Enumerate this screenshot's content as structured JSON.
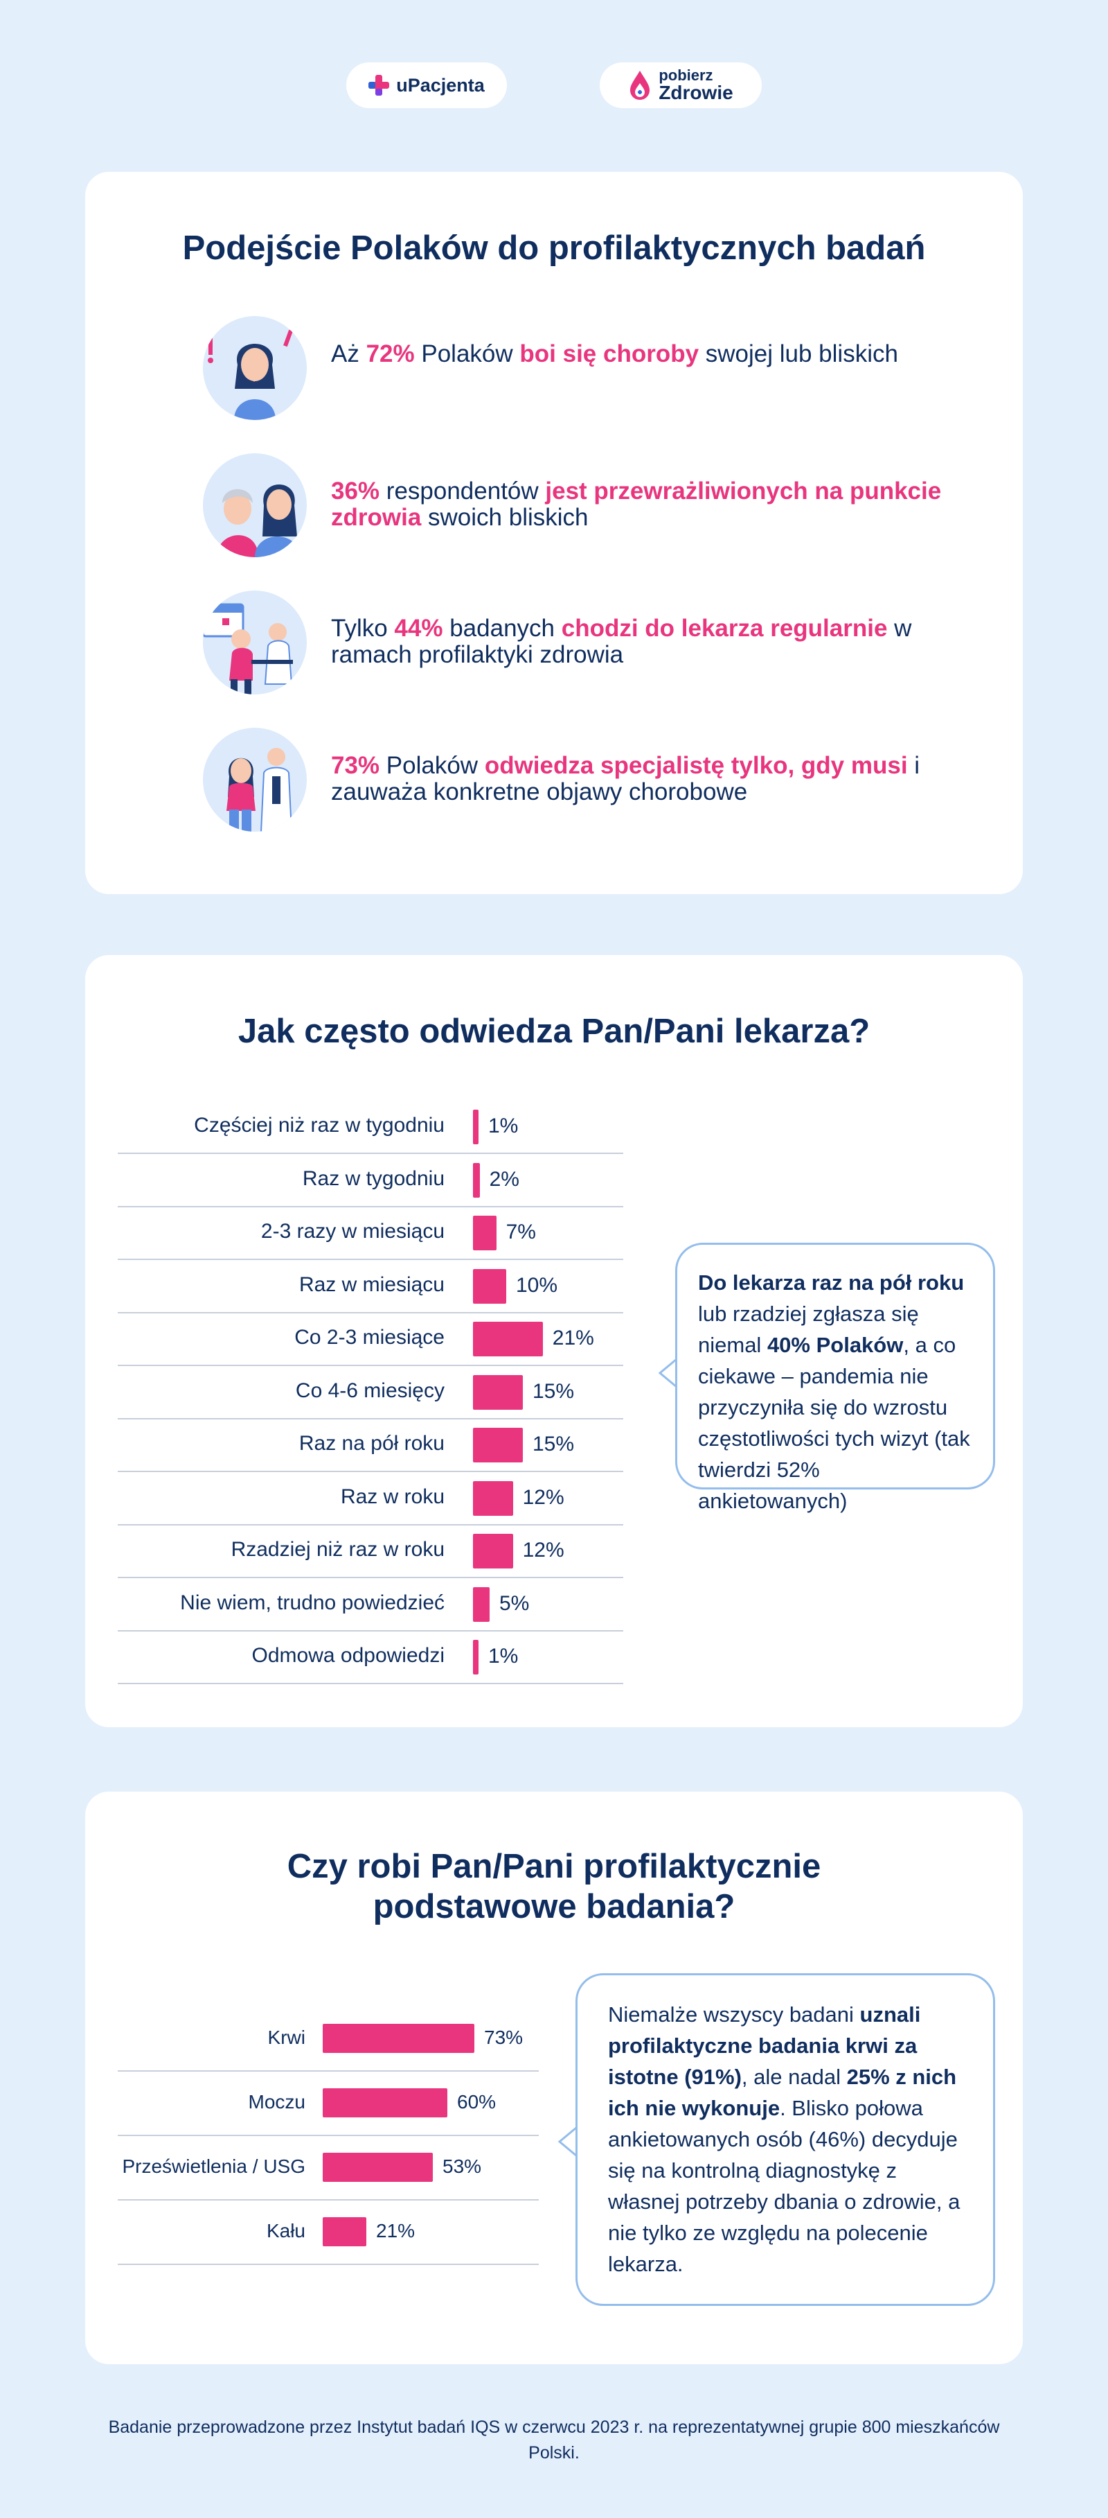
{
  "logos": {
    "upacjenta": "uPacjenta",
    "pobierz_top": "pobierz",
    "pobierz_bottom": "Zdrowie"
  },
  "colors": {
    "accent": "#E8357E",
    "navy": "#0F2D5E",
    "background": "#E4EFFC",
    "bubble_border": "#93BDEC"
  },
  "section1": {
    "title": "Podejście Polaków do profilaktycznych badań",
    "facts": [
      {
        "icon": "worried-woman-icon",
        "parts": [
          {
            "t": "Aż ",
            "h": false
          },
          {
            "t": "72%",
            "h": true
          },
          {
            "t": " Polaków ",
            "h": false
          },
          {
            "t": "boi się choroby",
            "h": true
          },
          {
            "t": " swojej lub bliskich",
            "h": false
          }
        ]
      },
      {
        "icon": "caregiver-elderly-icon",
        "parts": [
          {
            "t": "36%",
            "h": true
          },
          {
            "t": " respondentów ",
            "h": false
          },
          {
            "t": "jest przewrażliwionych na punkcie zdrowia",
            "h": true
          },
          {
            "t": " swoich bliskich",
            "h": false
          }
        ]
      },
      {
        "icon": "doctor-visit-icon",
        "parts": [
          {
            "t": "Tylko ",
            "h": false
          },
          {
            "t": "44%",
            "h": true
          },
          {
            "t": " badanych ",
            "h": false
          },
          {
            "t": "chodzi do lekarza regularnie",
            "h": true
          },
          {
            "t": " w ramach profilaktyki zdrowia",
            "h": false
          }
        ]
      },
      {
        "icon": "patient-specialist-icon",
        "parts": [
          {
            "t": "73%",
            "h": true
          },
          {
            "t": " Polaków ",
            "h": false
          },
          {
            "t": "odwiedza specjalistę tylko, gdy musi",
            "h": true
          },
          {
            "t": " i zauważa konkretne objawy chorobowe",
            "h": false
          }
        ]
      }
    ]
  },
  "chart_data": [
    {
      "type": "bar",
      "orientation": "horizontal",
      "title": "Jak często odwiedza Pan/Pani lekarza?",
      "categories": [
        "Częściej niż raz w tygodniu",
        "Raz w tygodniu",
        "2-3 razy w miesiącu",
        "Raz w miesiącu",
        "Co 2-3 miesiące",
        "Co 4-6 miesięcy",
        "Raz na pół roku",
        "Raz w roku",
        "Rzadziej niż raz w roku",
        "Nie wiem, trudno powiedzieć",
        "Odmowa odpowiedzi"
      ],
      "values": [
        1,
        2,
        7,
        10,
        21,
        15,
        15,
        12,
        12,
        5,
        1
      ],
      "value_labels": [
        "1%",
        "2%",
        "7%",
        "10%",
        "21%",
        "15%",
        "15%",
        "12%",
        "12%",
        "5%",
        "1%"
      ],
      "unit": "%",
      "color": "#E8357E"
    },
    {
      "type": "bar",
      "orientation": "horizontal",
      "title": "Czy robi Pan/Pani profilaktycznie podstawowe badania?",
      "categories": [
        "Krwi",
        "Moczu",
        "Prześwietlenia / USG",
        "Kału"
      ],
      "values": [
        73,
        60,
        53,
        21
      ],
      "value_labels": [
        "73%",
        "60%",
        "53%",
        "21%"
      ],
      "unit": "%",
      "color": "#E8357E"
    }
  ],
  "section2": {
    "title": "Jak często odwiedza Pan/Pani lekarza?",
    "bubble": [
      {
        "t": "Do lekarza raz na pół roku",
        "b": true
      },
      {
        "t": " lub rzadziej zgłasza się niemal ",
        "b": false
      },
      {
        "t": "40% Polaków",
        "b": true
      },
      {
        "t": ", a co ciekawe – pandemia nie przyczyniła się do wzrostu częstotliwości tych wizyt (tak twierdzi 52% ankietowanych)",
        "b": false
      }
    ]
  },
  "section3": {
    "title_line1": "Czy robi Pan/Pani profilaktycznie",
    "title_line2": "podstawowe badania?",
    "bubble": [
      {
        "t": "Niemalże wszyscy badani ",
        "b": false
      },
      {
        "t": "uznali profilaktyczne badania krwi za istotne (91%)",
        "b": true
      },
      {
        "t": ", ale nadal ",
        "b": false
      },
      {
        "t": "25% z nich ich nie wykonuje",
        "b": true
      },
      {
        "t": ". Blisko połowa ankietowanych osób (46%) decyduje się na kontrolną diagnostykę z własnej potrzeby dbania o zdrowie, a nie tylko ze względu na polecenie lekarza.",
        "b": false
      }
    ]
  },
  "footer": "Badanie przeprowadzone przez Instytut badań IQS w czerwcu 2023 r. na reprezentatywnej grupie 800 mieszkańców Polski."
}
